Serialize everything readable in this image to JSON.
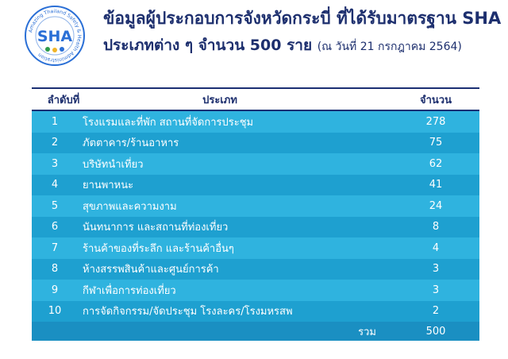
{
  "logo": {
    "text": "SHA",
    "ring_text": "Amazing Thailand Safety & Health Administration",
    "icon": "sha-logo-icon"
  },
  "header": {
    "title_line1": "ข้อมูลผู้ประกอบการจังหวัดกระบี่ ที่ได้รับมาตรฐาน SHA",
    "title_line2": "ประเภทต่าง ๆ จำนวน 500 ราย",
    "title_note": "(ณ วันที่ 21 กรกฎาคม 2564)"
  },
  "table": {
    "columns": [
      "ลำดับที่",
      "ประเภท",
      "จำนวน"
    ],
    "rows": [
      {
        "no": "1",
        "category": "โรงแรมและที่พัก สถานที่จัดการประชุม",
        "count": "278"
      },
      {
        "no": "2",
        "category": "ภัตตาคาร/ร้านอาหาร",
        "count": "75"
      },
      {
        "no": "3",
        "category": "บริษัทนำเที่ยว",
        "count": "62"
      },
      {
        "no": "4",
        "category": "ยานพาหนะ",
        "count": "41"
      },
      {
        "no": "5",
        "category": "สุขภาพและความงาม",
        "count": "24"
      },
      {
        "no": "6",
        "category": "นันทนาการ และสถานที่ท่องเที่ยว",
        "count": "8"
      },
      {
        "no": "7",
        "category": "ร้านค้าของที่ระลึก และร้านค้าอื่นๆ",
        "count": "4"
      },
      {
        "no": "8",
        "category": "ห้างสรรพสินค้าและศูนย์การค้า",
        "count": "3"
      },
      {
        "no": "9",
        "category": "กีฬาเพื่อการท่องเที่ยว",
        "count": "3"
      },
      {
        "no": "10",
        "category": "การจัดกิจกรรม/จัดประชุม โรงละคร/โรงมหรสพ",
        "count": "2"
      }
    ],
    "total_label": "รวม",
    "total_value": "500"
  },
  "colors": {
    "title": "#1d2f6e",
    "row_light": "#2fb3df",
    "row_dark": "#1ea0d0",
    "total_bg": "#1a8fc2",
    "logo_blue": "#2a6fd6"
  }
}
